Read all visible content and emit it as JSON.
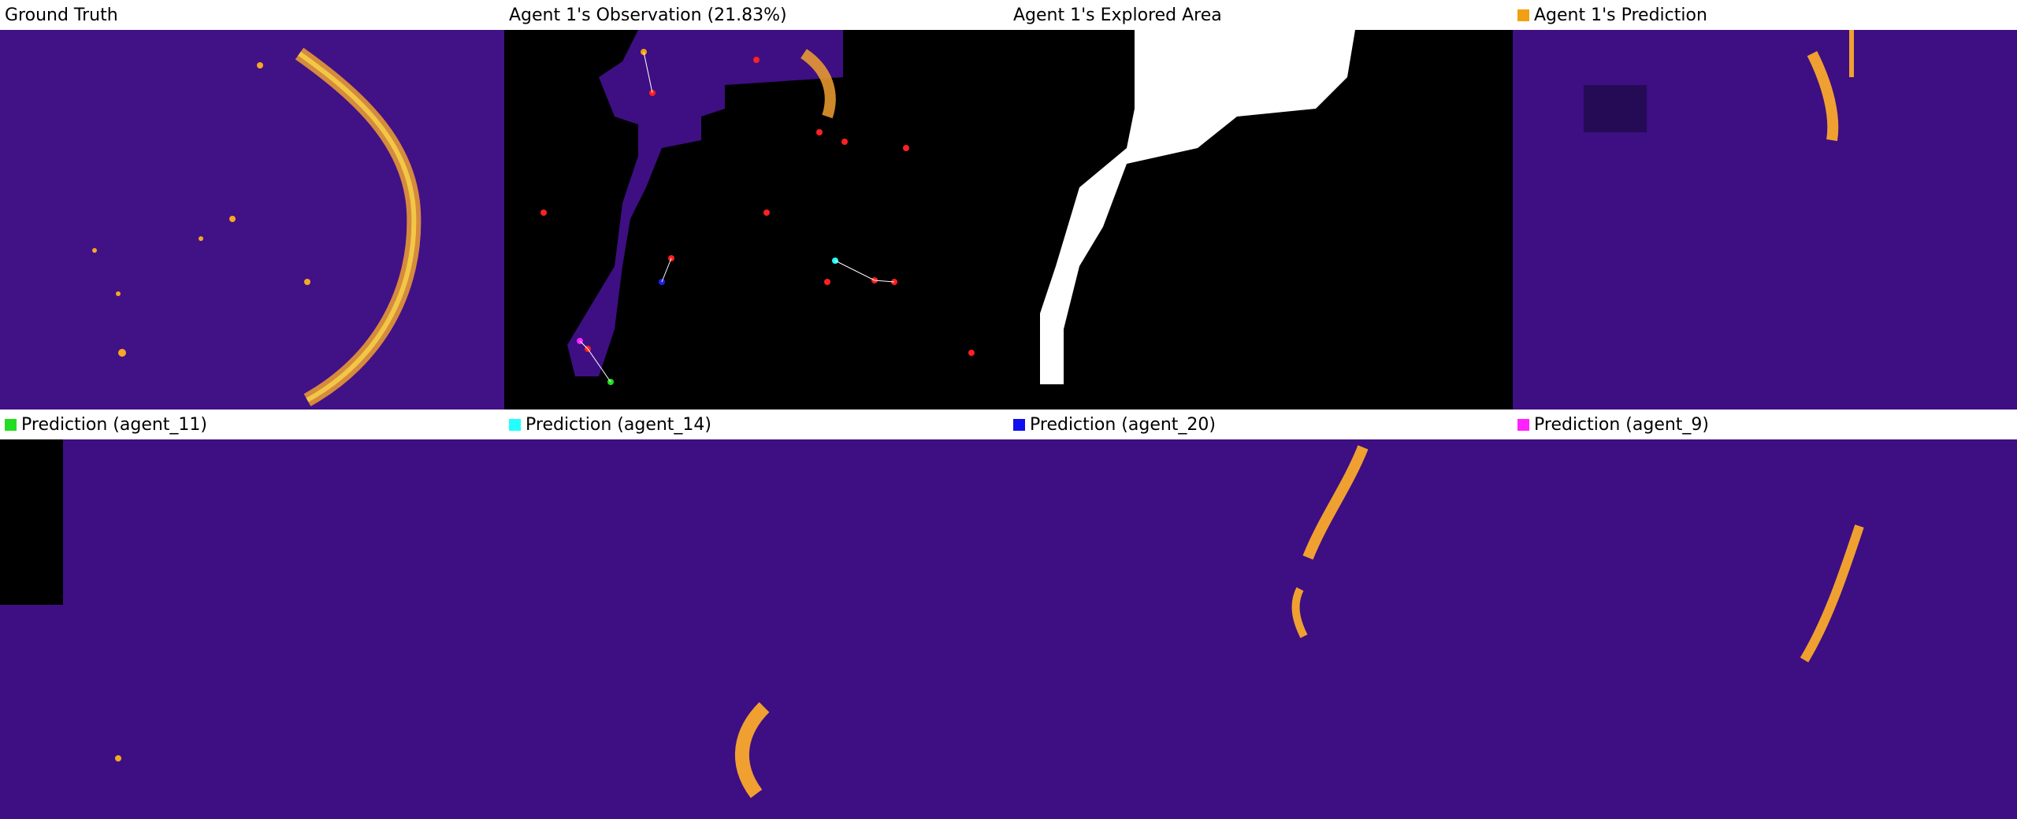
{
  "panels": [
    {
      "caption": "Ground Truth",
      "swatch": null
    },
    {
      "caption": "Agent 1's Observation (21.83%)",
      "swatch": null
    },
    {
      "caption": "Agent 1's Explored Area",
      "swatch": null
    },
    {
      "caption": "Agent 1's Prediction",
      "swatch": "#f0a010"
    },
    {
      "caption": "Prediction (agent_11)",
      "swatch": "#22dd22"
    },
    {
      "caption": "Prediction (agent_14)",
      "swatch": "#22ffff"
    },
    {
      "caption": "Prediction (agent_20)",
      "swatch": "#1010ee"
    },
    {
      "caption": "Prediction (agent_9)",
      "swatch": "#ff22ff"
    }
  ],
  "colors": {
    "map_base": "#3d0f82",
    "map_dark": "#2a0a5c",
    "hot": "#f6a823",
    "hot_bright": "#fde14a",
    "observed_mask": "#000000",
    "explored": "#ffffff"
  }
}
